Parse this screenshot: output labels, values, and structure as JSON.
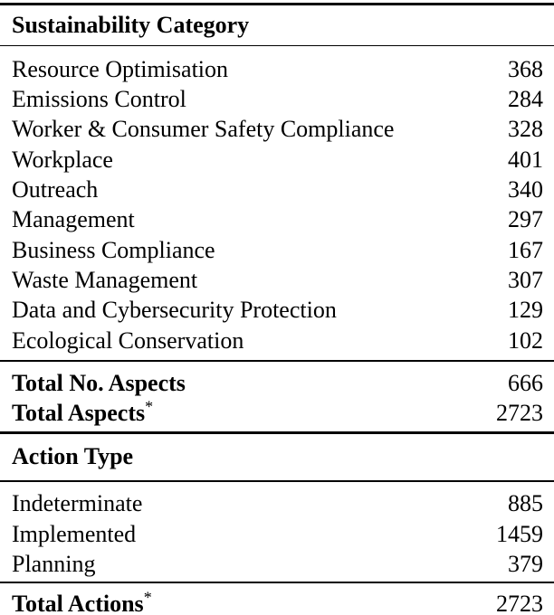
{
  "table": {
    "sustainability": {
      "header": "Sustainability Category",
      "rows": [
        {
          "label": "Resource Optimisation",
          "value": "368"
        },
        {
          "label": "Emissions Control",
          "value": "284"
        },
        {
          "label": "Worker & Consumer Safety Compliance",
          "value": "328"
        },
        {
          "label": "Workplace",
          "value": "401"
        },
        {
          "label": "Outreach",
          "value": "340"
        },
        {
          "label": "Management",
          "value": "297"
        },
        {
          "label": "Business Compliance",
          "value": "167"
        },
        {
          "label": "Waste Management",
          "value": "307"
        },
        {
          "label": "Data and Cybersecurity Protection",
          "value": "129"
        },
        {
          "label": "Ecological Conservation",
          "value": "102"
        }
      ],
      "totals": [
        {
          "label": "Total No. Aspects",
          "sup": "",
          "value": "666"
        },
        {
          "label": "Total Aspects",
          "sup": "*",
          "value": "2723"
        }
      ]
    },
    "actions": {
      "header": "Action Type",
      "rows": [
        {
          "label": "Indeterminate",
          "value": "885"
        },
        {
          "label": "Implemented",
          "value": "1459"
        },
        {
          "label": "Planning",
          "value": "379"
        }
      ],
      "total": {
        "label": "Total Actions",
        "sup": "*",
        "value": "2723"
      }
    }
  },
  "colors": {
    "background": "#ffffff",
    "text": "#000000",
    "rule": "#000000"
  }
}
